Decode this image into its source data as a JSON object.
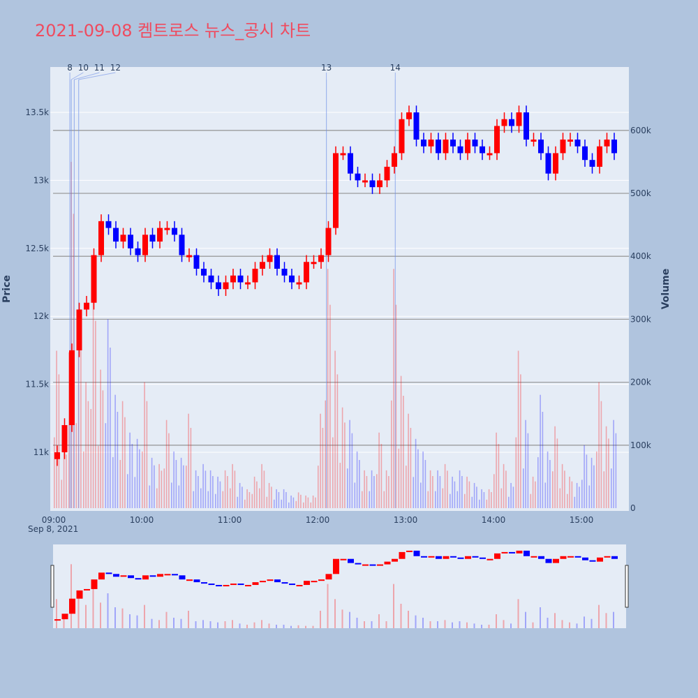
{
  "title": "2021-09-08 켐트로스 뉴스_공시 차트",
  "chart_data": {
    "type": "candlestick",
    "title": "2021-09-08 켐트로스 뉴스_공시 차트",
    "date_label": "Sep 8, 2021",
    "xlabel": "",
    "ylabel": "Price",
    "y2label": "Volume",
    "x_ticks": [
      "09:00",
      "10:00",
      "11:00",
      "12:00",
      "13:00",
      "14:00",
      "15:00"
    ],
    "price_ticks": [
      {
        "v": 11000,
        "label": "11k"
      },
      {
        "v": 11500,
        "label": "11.5k"
      },
      {
        "v": 12000,
        "label": "12k"
      },
      {
        "v": 12500,
        "label": "12.5k"
      },
      {
        "v": 13000,
        "label": "13k"
      },
      {
        "v": 13500,
        "label": "13.5k"
      }
    ],
    "volume_ticks": [
      {
        "v": 0,
        "label": "0"
      },
      {
        "v": 100,
        "label": "100k"
      },
      {
        "v": 200,
        "label": "200k"
      },
      {
        "v": 300,
        "label": "300k"
      },
      {
        "v": 400,
        "label": "400k"
      },
      {
        "v": 500,
        "label": "500k"
      },
      {
        "v": 600,
        "label": "600k"
      }
    ],
    "up_color": "#ff0000",
    "down_color": "#0000ff",
    "interval_minutes": 5,
    "start_time": "09:00",
    "close": [
      11000,
      11200,
      11750,
      12050,
      12100,
      12450,
      12700,
      12650,
      12550,
      12600,
      12500,
      12450,
      12600,
      12550,
      12650,
      12650,
      12600,
      12450,
      12450,
      12350,
      12300,
      12250,
      12200,
      12250,
      12300,
      12250,
      12250,
      12350,
      12400,
      12450,
      12350,
      12300,
      12250,
      12250,
      12400,
      12400,
      12450,
      12650,
      13200,
      13200,
      13050,
      13000,
      13000,
      12950,
      13000,
      13100,
      13200,
      13450,
      13500,
      13300,
      13250,
      13300,
      13200,
      13300,
      13250,
      13200,
      13300,
      13250,
      13200,
      13200,
      13400,
      13450,
      13400,
      13500,
      13300,
      13300,
      13200,
      13050,
      13200,
      13300,
      13300,
      13250,
      13150,
      13100,
      13250,
      13300,
      13200
    ],
    "volume_k": [
      250,
      100,
      550,
      300,
      200,
      350,
      220,
      300,
      180,
      170,
      120,
      110,
      200,
      80,
      70,
      140,
      90,
      80,
      150,
      60,
      70,
      60,
      50,
      60,
      70,
      40,
      30,
      50,
      70,
      40,
      30,
      30,
      20,
      25,
      20,
      20,
      150,
      380,
      250,
      160,
      140,
      90,
      60,
      60,
      120,
      60,
      380,
      210,
      150,
      110,
      90,
      60,
      60,
      70,
      50,
      60,
      50,
      40,
      30,
      30,
      120,
      70,
      40,
      250,
      140,
      50,
      180,
      90,
      130,
      70,
      50,
      40,
      100,
      80,
      200,
      130,
      140
    ],
    "news_markers": [
      {
        "label": "8",
        "time": "09:11"
      },
      {
        "label": "10",
        "time": "09:12"
      },
      {
        "label": "11",
        "time": "09:14"
      },
      {
        "label": "12",
        "time": "09:17"
      },
      {
        "label": "13",
        "time": "12:06"
      },
      {
        "label": "14",
        "time": "12:53"
      }
    ]
  }
}
